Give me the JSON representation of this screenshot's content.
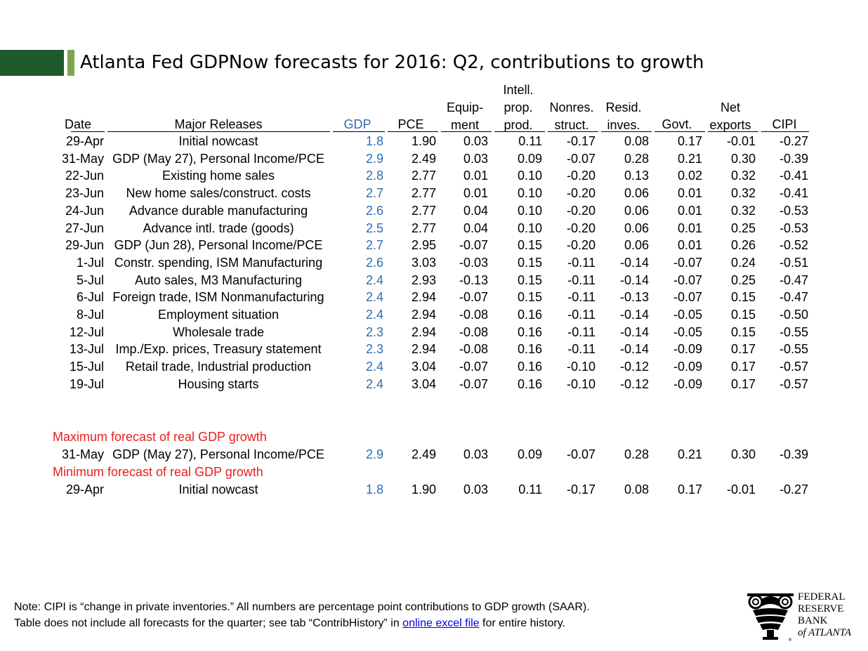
{
  "title": "Atlanta Fed GDPNow forecasts for 2016: Q2, contributions to growth",
  "headers": {
    "date": "Date",
    "releases": "Major Releases",
    "gdp": "GDP",
    "pce": "PCE",
    "equipment": [
      "Equip-",
      "ment"
    ],
    "intell": [
      "Intell.",
      "prop.",
      "prod."
    ],
    "nonres": [
      "Nonres.",
      "struct."
    ],
    "resid": [
      "Resid.",
      "inves."
    ],
    "govt": "Govt.",
    "net": [
      "Net",
      "exports"
    ],
    "cipi": "CIPI"
  },
  "rows": [
    {
      "date": "29-Apr",
      "release": "Initial nowcast",
      "gdp": "1.8",
      "pce": "1.90",
      "eq": "0.03",
      "ip": "0.11",
      "nr": "-0.17",
      "res": "0.08",
      "gov": "0.17",
      "net": "-0.01",
      "cipi": "-0.27"
    },
    {
      "date": "31-May",
      "release": "GDP (May 27), Personal Income/PCE",
      "gdp": "2.9",
      "pce": "2.49",
      "eq": "0.03",
      "ip": "0.09",
      "nr": "-0.07",
      "res": "0.28",
      "gov": "0.21",
      "net": "0.30",
      "cipi": "-0.39"
    },
    {
      "date": "22-Jun",
      "release": "Existing home sales",
      "gdp": "2.8",
      "pce": "2.77",
      "eq": "0.01",
      "ip": "0.10",
      "nr": "-0.20",
      "res": "0.13",
      "gov": "0.02",
      "net": "0.32",
      "cipi": "-0.41"
    },
    {
      "date": "23-Jun",
      "release": "New home sales/construct. costs",
      "gdp": "2.7",
      "pce": "2.77",
      "eq": "0.01",
      "ip": "0.10",
      "nr": "-0.20",
      "res": "0.06",
      "gov": "0.01",
      "net": "0.32",
      "cipi": "-0.41"
    },
    {
      "date": "24-Jun",
      "release": "Advance durable manufacturing",
      "gdp": "2.6",
      "pce": "2.77",
      "eq": "0.04",
      "ip": "0.10",
      "nr": "-0.20",
      "res": "0.06",
      "gov": "0.01",
      "net": "0.32",
      "cipi": "-0.53"
    },
    {
      "date": "27-Jun",
      "release": "Advance intl. trade (goods)",
      "gdp": "2.5",
      "pce": "2.77",
      "eq": "0.04",
      "ip": "0.10",
      "nr": "-0.20",
      "res": "0.06",
      "gov": "0.01",
      "net": "0.25",
      "cipi": "-0.53"
    },
    {
      "date": "29-Jun",
      "release": "GDP (Jun 28), Personal Income/PCE",
      "gdp": "2.7",
      "pce": "2.95",
      "eq": "-0.07",
      "ip": "0.15",
      "nr": "-0.20",
      "res": "0.06",
      "gov": "0.01",
      "net": "0.26",
      "cipi": "-0.52"
    },
    {
      "date": "1-Jul",
      "release": "Constr. spending, ISM Manufacturing",
      "gdp": "2.6",
      "pce": "3.03",
      "eq": "-0.03",
      "ip": "0.15",
      "nr": "-0.11",
      "res": "-0.14",
      "gov": "-0.07",
      "net": "0.24",
      "cipi": "-0.51"
    },
    {
      "date": "5-Jul",
      "release": "Auto sales, M3 Manufacturing",
      "gdp": "2.4",
      "pce": "2.93",
      "eq": "-0.13",
      "ip": "0.15",
      "nr": "-0.11",
      "res": "-0.14",
      "gov": "-0.07",
      "net": "0.25",
      "cipi": "-0.47"
    },
    {
      "date": "6-Jul",
      "release": "Foreign trade, ISM Nonmanufacturing",
      "gdp": "2.4",
      "pce": "2.94",
      "eq": "-0.07",
      "ip": "0.15",
      "nr": "-0.11",
      "res": "-0.13",
      "gov": "-0.07",
      "net": "0.15",
      "cipi": "-0.47"
    },
    {
      "date": "8-Jul",
      "release": "Employment situation",
      "gdp": "2.4",
      "pce": "2.94",
      "eq": "-0.08",
      "ip": "0.16",
      "nr": "-0.11",
      "res": "-0.14",
      "gov": "-0.05",
      "net": "0.15",
      "cipi": "-0.50"
    },
    {
      "date": "12-Jul",
      "release": "Wholesale trade",
      "gdp": "2.3",
      "pce": "2.94",
      "eq": "-0.08",
      "ip": "0.16",
      "nr": "-0.11",
      "res": "-0.14",
      "gov": "-0.05",
      "net": "0.15",
      "cipi": "-0.55"
    },
    {
      "date": "13-Jul",
      "release": "Imp./Exp. prices, Treasury statement",
      "gdp": "2.3",
      "pce": "2.94",
      "eq": "-0.08",
      "ip": "0.16",
      "nr": "-0.11",
      "res": "-0.14",
      "gov": "-0.09",
      "net": "0.17",
      "cipi": "-0.55"
    },
    {
      "date": "15-Jul",
      "release": "Retail trade, Industrial production",
      "gdp": "2.4",
      "pce": "3.04",
      "eq": "-0.07",
      "ip": "0.16",
      "nr": "-0.10",
      "res": "-0.12",
      "gov": "-0.09",
      "net": "0.17",
      "cipi": "-0.57"
    },
    {
      "date": "19-Jul",
      "release": "Housing starts",
      "gdp": "2.4",
      "pce": "3.04",
      "eq": "-0.07",
      "ip": "0.16",
      "nr": "-0.10",
      "res": "-0.12",
      "gov": "-0.09",
      "net": "0.17",
      "cipi": "-0.57"
    }
  ],
  "max_label": "Maximum forecast of real GDP growth",
  "max_row": {
    "date": "31-May",
    "release": "GDP (May 27), Personal Income/PCE",
    "gdp": "2.9",
    "pce": "2.49",
    "eq": "0.03",
    "ip": "0.09",
    "nr": "-0.07",
    "res": "0.28",
    "gov": "0.21",
    "net": "0.30",
    "cipi": "-0.39"
  },
  "min_label": "Minimum forecast of real GDP growth",
  "min_row": {
    "date": "29-Apr",
    "release": "Initial nowcast",
    "gdp": "1.8",
    "pce": "1.90",
    "eq": "0.03",
    "ip": "0.11",
    "nr": "-0.17",
    "res": "0.08",
    "gov": "0.17",
    "net": "-0.01",
    "cipi": "-0.27"
  },
  "note": {
    "line1": "Note:  CIPI is “change in private inventories.”  All numbers are percentage point contributions to GDP growth (SAAR).",
    "line2_before": "Table does not include all forecasts for the quarter; see tab “ContribHistory” in ",
    "link": "online excel file",
    "line2_after": " for entire history."
  },
  "logo_text": [
    "FEDERAL",
    "RESERVE",
    "BANK",
    "of ATLANTA"
  ],
  "colors": {
    "title_bar_dark": "#1f5a2d",
    "title_bar_light": "#7fa64e",
    "gdp_text": "#2e6db4",
    "section_label": "#e8201c"
  }
}
